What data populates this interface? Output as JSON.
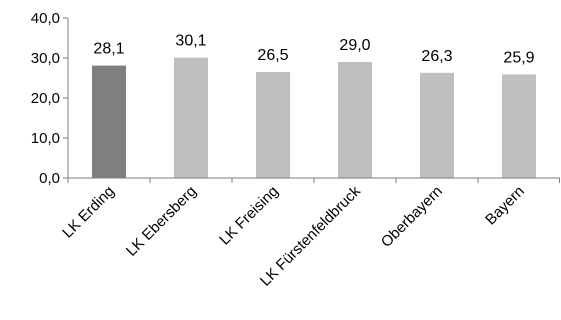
{
  "chart_data": {
    "type": "bar",
    "categories": [
      "LK Erding",
      "LK Ebersberg",
      "LK Freising",
      "LK Fürstenfeldbruck",
      "Oberbayern",
      "Bayern"
    ],
    "values": [
      28.1,
      30.1,
      26.5,
      29.0,
      26.3,
      25.9
    ],
    "value_labels": [
      "28,1",
      "30,1",
      "26,5",
      "29,0",
      "26,3",
      "25,9"
    ],
    "ylim": [
      0,
      40
    ],
    "yticks": [
      0,
      10,
      20,
      30,
      40
    ],
    "ytick_labels": [
      "0,0",
      "10,0",
      "20,0",
      "30,0",
      "40,0"
    ],
    "title": "",
    "xlabel": "",
    "ylabel": "",
    "grid": false,
    "legend": "none",
    "colors": {
      "highlight": "#7f7f7f",
      "default": "#bfbfbf",
      "axis": "#7f7f7f"
    },
    "highlight_index": 0
  }
}
